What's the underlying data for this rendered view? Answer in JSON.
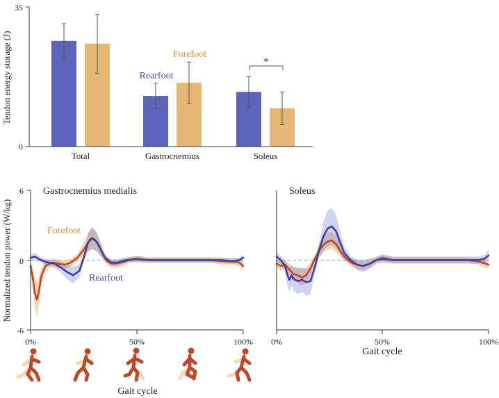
{
  "colors": {
    "rearfoot": "#5b64b8",
    "forefoot": "#e5b774",
    "rearfoot_line": "#3f3f9c",
    "forefoot_line": "#c2452a",
    "forefoot_label": "#d98a3a",
    "rearfoot_label": "#4a4fa6",
    "runner": "#c0462a",
    "runner_shadow": "#f3d9b6"
  },
  "runner_icons": [
    "runner-foot-strike",
    "runner-loading",
    "runner-midstance",
    "runner-push-off",
    "runner-swing"
  ],
  "chart_data": [
    {
      "type": "bar",
      "ylabel": "Tendon energy storage (J)",
      "ylim": [
        0,
        35
      ],
      "yticks": [
        "0",
        "35"
      ],
      "categories": [
        "Total",
        "Gastrocnemius",
        "Soleus"
      ],
      "series": [
        {
          "name": "Rearfoot",
          "values": [
            26.5,
            12.7,
            13.7
          ],
          "err": [
            4.3,
            3.2,
            3.8
          ]
        },
        {
          "name": "Forefoot",
          "values": [
            25.8,
            16.0,
            9.6
          ],
          "err": [
            7.4,
            5.2,
            4.1
          ]
        }
      ],
      "annotation": "*"
    },
    {
      "type": "line",
      "title": "Gastrocnemius medialis",
      "ylabel": "Normalized tendon power (W/kg)",
      "xlabel": "Gait cycle",
      "ylim": [
        -6,
        6
      ],
      "yticks": [
        "6",
        "0",
        "-6"
      ],
      "xticks": [
        "0%",
        "50%",
        "100%"
      ],
      "series": [
        {
          "name": "Forefoot",
          "x": [
            0,
            1,
            2,
            3,
            4,
            5,
            7,
            10,
            13,
            16,
            19,
            22,
            25,
            28,
            30,
            32,
            34,
            36,
            38,
            40,
            43,
            46,
            50,
            55,
            60,
            65,
            70,
            75,
            80,
            85,
            90,
            95,
            98,
            100
          ],
          "y": [
            -0.5,
            -1.5,
            -2.8,
            -3.4,
            -2.6,
            -1.4,
            -0.5,
            -0.2,
            -0.3,
            -0.4,
            -0.2,
            0.2,
            0.9,
            1.8,
            1.8,
            1.3,
            0.5,
            -0.1,
            -0.3,
            -0.3,
            -0.2,
            0.0,
            0.1,
            0.0,
            0.0,
            0.0,
            0.0,
            0.0,
            0.0,
            0.0,
            -0.1,
            -0.1,
            -0.2,
            -0.5
          ]
        },
        {
          "name": "Rearfoot",
          "x": [
            0,
            2,
            5,
            8,
            11,
            14,
            17,
            20,
            23,
            25,
            27,
            29,
            31,
            33,
            35,
            38,
            41,
            45,
            50,
            55,
            60,
            65,
            70,
            75,
            80,
            85,
            90,
            95,
            98,
            100
          ],
          "y": [
            0.2,
            0.3,
            0.0,
            -0.2,
            -0.3,
            -0.6,
            -1.0,
            -1.3,
            -0.9,
            0.2,
            1.5,
            1.9,
            1.6,
            0.9,
            0.2,
            -0.2,
            -0.2,
            0.0,
            0.1,
            0.0,
            0.0,
            0.0,
            0.0,
            0.0,
            0.0,
            0.0,
            0.0,
            -0.1,
            0.0,
            0.2
          ]
        }
      ]
    },
    {
      "type": "line",
      "title": "Soleus",
      "xlabel": "Gait cycle",
      "ylim": [
        -6,
        6
      ],
      "xticks": [
        "0%",
        "50%",
        "100%"
      ],
      "series": [
        {
          "name": "Forefoot",
          "x": [
            0,
            2,
            4,
            6,
            8,
            10,
            12,
            14,
            16,
            18,
            20,
            22,
            24,
            26,
            28,
            30,
            32,
            35,
            38,
            41,
            44,
            47,
            50,
            55,
            60,
            65,
            70,
            75,
            80,
            85,
            90,
            95,
            100
          ],
          "y": [
            -0.3,
            -0.5,
            -0.4,
            -0.8,
            -1.2,
            -1.3,
            -1.5,
            -1.3,
            -0.7,
            0.1,
            0.8,
            1.3,
            1.6,
            1.7,
            1.4,
            0.8,
            0.3,
            -0.2,
            -0.4,
            -0.5,
            -0.3,
            0.0,
            0.2,
            0.0,
            0.0,
            0.0,
            0.0,
            0.0,
            0.0,
            0.0,
            0.0,
            -0.1,
            -0.4
          ]
        },
        {
          "name": "Rearfoot",
          "x": [
            0,
            2,
            4,
            5,
            6,
            7,
            8,
            10,
            12,
            14,
            16,
            18,
            20,
            22,
            24,
            26,
            28,
            30,
            32,
            35,
            38,
            41,
            44,
            47,
            50,
            55,
            60,
            65,
            70,
            75,
            80,
            85,
            90,
            95,
            98,
            100
          ],
          "y": [
            0.3,
            0.0,
            -0.5,
            -1.2,
            -1.7,
            -1.3,
            -1.6,
            -1.8,
            -1.7,
            -1.9,
            -1.8,
            -0.6,
            0.8,
            2.0,
            2.7,
            2.9,
            2.5,
            1.5,
            0.6,
            0.0,
            -0.4,
            -0.5,
            -0.3,
            0.0,
            0.1,
            0.0,
            0.0,
            0.0,
            0.0,
            0.0,
            0.0,
            0.0,
            0.0,
            0.0,
            0.1,
            0.4
          ]
        }
      ]
    }
  ]
}
